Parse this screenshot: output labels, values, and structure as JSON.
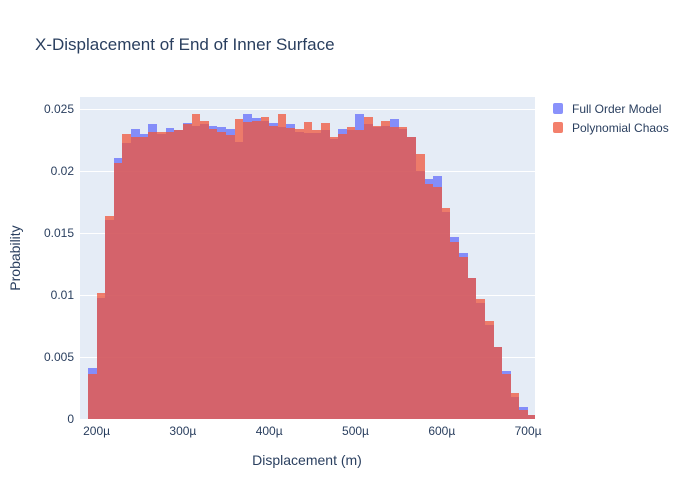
{
  "title": "X-Displacement of End of Inner Surface",
  "legend": {
    "items": [
      {
        "label": "Full Order Model",
        "swatch_color": "rgba(99,110,250,0.75)",
        "base_color": "#636efa"
      },
      {
        "label": "Polynomial Chaos",
        "swatch_color": "rgba(239,85,59,0.75)",
        "base_color": "#ef553b"
      }
    ]
  },
  "colors": {
    "text": "#2a3f5f",
    "plot_background": "#e5ecf6",
    "gridline": "#ffffff",
    "page_background": "#ffffff"
  },
  "chart_data": {
    "type": "bar",
    "subtype": "overlaid-histogram",
    "title": "X-Displacement of End of Inner Surface",
    "xlabel": "Displacement (m)",
    "ylabel": "Probability",
    "legend_position": "top-right",
    "grid": "on",
    "x_ticks": [
      "200µ",
      "300µ",
      "400µ",
      "500µ",
      "600µ",
      "700µ"
    ],
    "x_tick_values": [
      200,
      300,
      400,
      500,
      600,
      700
    ],
    "y_ticks": [
      "0",
      "0.005",
      "0.01",
      "0.015",
      "0.02",
      "0.025"
    ],
    "y_tick_values": [
      0,
      0.005,
      0.01,
      0.015,
      0.02,
      0.025
    ],
    "x_units": "micrometers",
    "bin_width_um": 10,
    "xlim": [
      180.8,
      708
    ],
    "ylim": [
      0,
      0.026
    ],
    "bins_um": [
      190,
      200,
      210,
      220,
      230,
      240,
      250,
      260,
      270,
      280,
      290,
      300,
      310,
      320,
      330,
      340,
      350,
      360,
      370,
      380,
      390,
      400,
      410,
      420,
      430,
      440,
      450,
      460,
      470,
      480,
      490,
      500,
      510,
      520,
      530,
      540,
      550,
      560,
      570,
      580,
      590,
      600,
      610,
      620,
      630,
      640,
      650,
      660,
      670,
      680,
      690,
      700
    ],
    "series": [
      {
        "name": "Full Order Model",
        "color": "rgba(99,110,250,0.75)",
        "values": [
          0.0041,
          0.0098,
          0.0161,
          0.0211,
          0.0223,
          0.0234,
          0.023,
          0.0238,
          0.023,
          0.0235,
          0.0233,
          0.0239,
          0.0237,
          0.0238,
          0.0237,
          0.0236,
          0.0234,
          0.0224,
          0.0246,
          0.0243,
          0.0241,
          0.0239,
          0.0236,
          0.0238,
          0.0232,
          0.0231,
          0.0231,
          0.0233,
          0.0226,
          0.0234,
          0.0233,
          0.0246,
          0.0238,
          0.0236,
          0.0237,
          0.0242,
          0.0234,
          0.0228,
          0.02,
          0.0194,
          0.0196,
          0.0167,
          0.0147,
          0.0134,
          0.0114,
          0.0094,
          0.0076,
          0.0058,
          0.0039,
          0.0018,
          0.001,
          0.0003
        ]
      },
      {
        "name": "Polynomial Chaos",
        "color": "rgba(239,85,59,0.75)",
        "values": [
          0.0036,
          0.0102,
          0.0164,
          0.0207,
          0.023,
          0.0228,
          0.0228,
          0.0232,
          0.0232,
          0.0232,
          0.0233,
          0.0238,
          0.0246,
          0.0241,
          0.0234,
          0.0232,
          0.0229,
          0.0242,
          0.024,
          0.0241,
          0.0244,
          0.0237,
          0.0246,
          0.0235,
          0.0234,
          0.024,
          0.0233,
          0.0239,
          0.0228,
          0.023,
          0.0236,
          0.0233,
          0.0244,
          0.0237,
          0.0241,
          0.0236,
          0.0236,
          0.0228,
          0.0214,
          0.019,
          0.0187,
          0.017,
          0.0143,
          0.0131,
          0.0114,
          0.0097,
          0.0079,
          0.0058,
          0.0036,
          0.0021,
          0.0007,
          0.0003
        ]
      }
    ]
  }
}
